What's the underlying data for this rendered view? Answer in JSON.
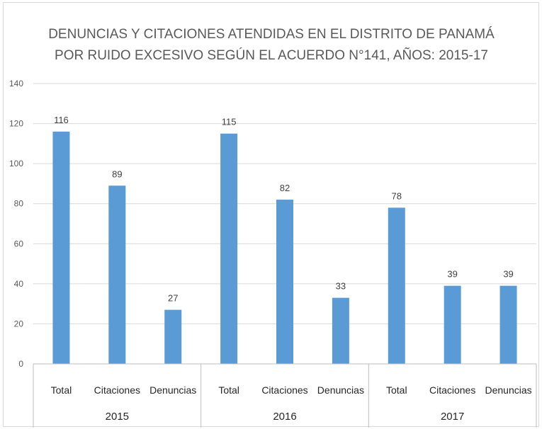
{
  "chart_data": {
    "type": "bar",
    "title_lines": [
      "DENUNCIAS Y CITACIONES ATENDIDAS EN EL DISTRITO DE PANAMÁ",
      "POR RUIDO EXCESIVO SEGÚN EL ACUERDO N°141, AÑOS: 2015-17"
    ],
    "groups": [
      {
        "label": "2015",
        "categories": [
          "Total",
          "Citaciones",
          "Denuncias"
        ],
        "values": [
          116,
          89,
          27
        ]
      },
      {
        "label": "2016",
        "categories": [
          "Total",
          "Citaciones",
          "Denuncias"
        ],
        "values": [
          115,
          82,
          33
        ]
      },
      {
        "label": "2017",
        "categories": [
          "Total",
          "Citaciones",
          "Denuncias"
        ],
        "values": [
          78,
          39,
          39
        ]
      }
    ],
    "ylim": [
      0,
      140
    ],
    "yticks": [
      0,
      20,
      40,
      60,
      80,
      100,
      120,
      140
    ],
    "grid": true,
    "legend": "none",
    "bar_color": "#5b9bd5"
  }
}
